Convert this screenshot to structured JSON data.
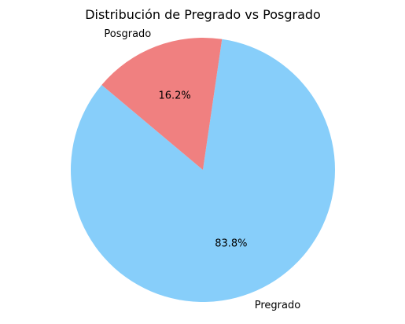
{
  "chart_data": {
    "type": "pie",
    "title": "Distribución de Pregrado vs Posgrado",
    "start_angle_deg": 140,
    "direction": "counterclockwise",
    "slices": [
      {
        "label": "Pregrado",
        "value": 83.8,
        "percent_label": "83.8%",
        "color": "#87CEFA"
      },
      {
        "label": "Posgrado",
        "value": 16.2,
        "percent_label": "16.2%",
        "color": "#F08080"
      }
    ]
  }
}
